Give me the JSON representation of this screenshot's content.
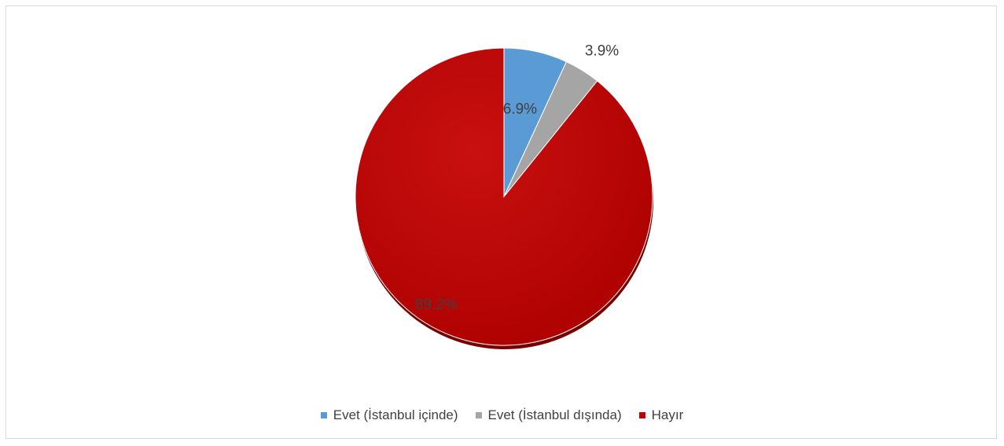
{
  "chart_data": {
    "type": "pie",
    "title": "",
    "legend_position": "bottom",
    "slices": [
      {
        "label": "Evet (İstanbul içinde)",
        "value": 6.9,
        "display": "6.9%",
        "color": "#5b9bd5",
        "label_placement": "inside"
      },
      {
        "label": "Evet (İstanbul dışında)",
        "value": 3.9,
        "display": "3.9%",
        "color": "#a5a5a5",
        "label_placement": "outside"
      },
      {
        "label": "Hayır",
        "value": 89.2,
        "display": "89.2%",
        "color": "#c00000",
        "label_placement": "inside"
      }
    ]
  }
}
